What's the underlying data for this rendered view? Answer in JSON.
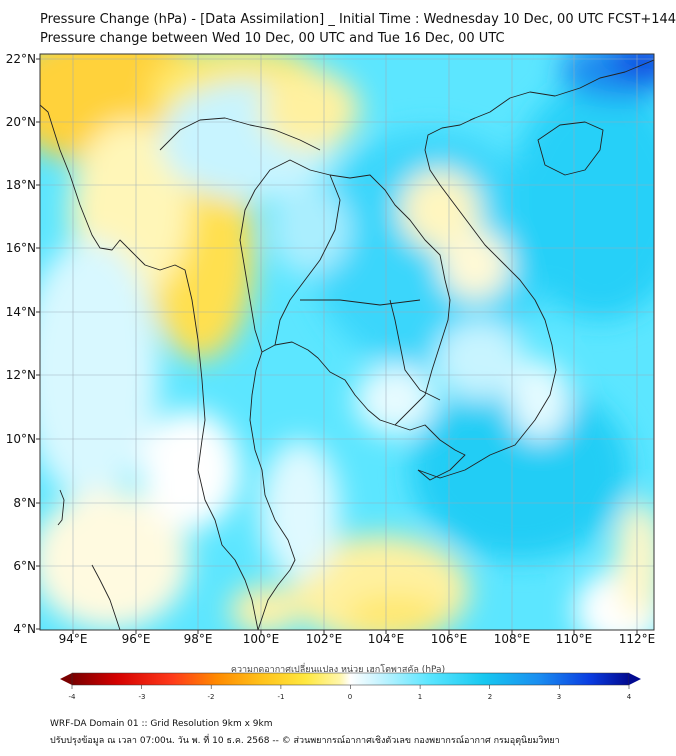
{
  "title_line1": "Pressure Change (hPa) - [Data Assimilation] _ Initial Time : Wednesday 10 Dec, 00 UTC FCST+144",
  "title_line2": "Pressure change between Wed 10 Dec, 00 UTC and Tue 16 Dec, 00 UTC",
  "lat_labels": [
    "22°N",
    "20°N",
    "18°N",
    "16°N",
    "14°N",
    "12°N",
    "10°N",
    "8°N",
    "6°N",
    "4°N"
  ],
  "lon_labels": [
    "94°E",
    "96°E",
    "98°E",
    "100°E",
    "102°E",
    "104°E",
    "106°E",
    "108°E",
    "110°E",
    "112°E"
  ],
  "colorbar": {
    "title": "ความกดอากาศเปลี่ยนแปลง หน่วย เฮกโตพาสคัล (hPa)",
    "ticks": [
      "-4",
      "-3",
      "-2",
      "-1",
      "0",
      "1",
      "2",
      "3",
      "4"
    ],
    "min": -4,
    "max": 4,
    "colors": [
      "#7a0000",
      "#d40000",
      "#ff3a1a",
      "#ff8a00",
      "#ffc21a",
      "#ffe840",
      "#fff6a8",
      "#ffffff",
      "#c8f4ff",
      "#5ce6ff",
      "#17c8f0",
      "#1a8cf0",
      "#0a3ce0",
      "#020a90"
    ]
  },
  "footer_line1": "WRF-DA Domain 01 :: Grid Resolution 9km x 9km",
  "footer_line2": "ปรับปรุงข้อมูล ณ เวลา 07:00น. วัน พ. ที่ 10 ธ.ค. 2568 -- © ส่วนพยากรณ์อากาศเชิงตัวเลข กองพยากรณ์อากาศ กรมอุตุนิยมวิทยา",
  "map_region": "Indochina peninsula, 93°E-112.5°E, 4°N-22.2°N"
}
